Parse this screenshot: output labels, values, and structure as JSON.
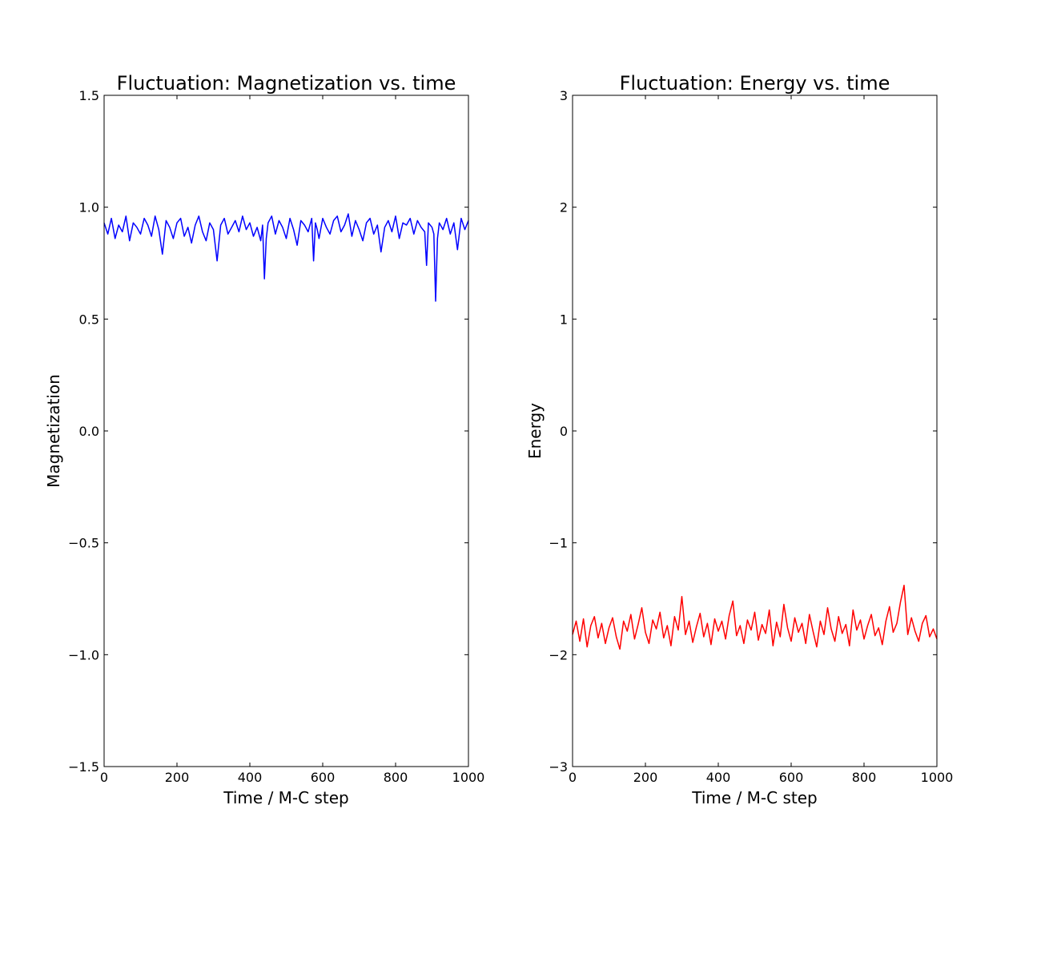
{
  "chart_data": [
    {
      "type": "line",
      "title": "Fluctuation: Magnetization vs. time",
      "xlabel": "Time / M-C step",
      "ylabel": "Magnetization",
      "xlim": [
        0,
        1000
      ],
      "ylim": [
        -1.5,
        1.5
      ],
      "x_ticks": [
        0,
        200,
        400,
        600,
        800,
        1000
      ],
      "x_tick_labels": [
        "0",
        "200",
        "400",
        "600",
        "800",
        "1000"
      ],
      "y_ticks": [
        -1.5,
        -1.0,
        -0.5,
        0.0,
        0.5,
        1.0,
        1.5
      ],
      "y_tick_labels": [
        "−1.5",
        "−1.0",
        "−0.5",
        "0.0",
        "0.5",
        "1.0",
        "1.5"
      ],
      "grid": false,
      "series": [
        {
          "color": "#0000ff",
          "x": [
            0,
            10,
            20,
            30,
            40,
            50,
            60,
            70,
            80,
            90,
            100,
            110,
            120,
            130,
            140,
            150,
            160,
            170,
            180,
            190,
            200,
            210,
            220,
            230,
            240,
            250,
            260,
            270,
            280,
            290,
            300,
            310,
            320,
            330,
            340,
            350,
            360,
            370,
            380,
            390,
            400,
            410,
            420,
            430,
            435,
            440,
            445,
            450,
            460,
            470,
            480,
            490,
            500,
            510,
            520,
            530,
            540,
            550,
            560,
            570,
            575,
            580,
            585,
            590,
            600,
            610,
            620,
            630,
            640,
            650,
            660,
            670,
            680,
            690,
            700,
            710,
            720,
            730,
            740,
            750,
            760,
            770,
            780,
            790,
            800,
            810,
            820,
            830,
            840,
            850,
            860,
            870,
            880,
            885,
            890,
            900,
            905,
            910,
            915,
            920,
            930,
            940,
            950,
            960,
            970,
            980,
            990,
            1000
          ],
          "y": [
            0.93,
            0.88,
            0.95,
            0.86,
            0.92,
            0.89,
            0.96,
            0.85,
            0.93,
            0.91,
            0.88,
            0.95,
            0.92,
            0.87,
            0.96,
            0.9,
            0.79,
            0.94,
            0.91,
            0.86,
            0.93,
            0.95,
            0.87,
            0.91,
            0.84,
            0.92,
            0.96,
            0.89,
            0.85,
            0.93,
            0.9,
            0.76,
            0.92,
            0.95,
            0.88,
            0.91,
            0.94,
            0.89,
            0.96,
            0.9,
            0.93,
            0.87,
            0.91,
            0.85,
            0.92,
            0.68,
            0.86,
            0.93,
            0.96,
            0.88,
            0.94,
            0.91,
            0.86,
            0.95,
            0.9,
            0.83,
            0.94,
            0.92,
            0.89,
            0.95,
            0.76,
            0.93,
            0.9,
            0.86,
            0.95,
            0.91,
            0.88,
            0.94,
            0.96,
            0.89,
            0.92,
            0.97,
            0.87,
            0.94,
            0.9,
            0.85,
            0.93,
            0.95,
            0.88,
            0.92,
            0.8,
            0.91,
            0.94,
            0.89,
            0.96,
            0.86,
            0.93,
            0.92,
            0.95,
            0.88,
            0.94,
            0.91,
            0.89,
            0.74,
            0.93,
            0.91,
            0.88,
            0.58,
            0.86,
            0.93,
            0.9,
            0.95,
            0.88,
            0.93,
            0.81,
            0.95,
            0.9,
            0.94
          ]
        }
      ]
    },
    {
      "type": "line",
      "title": "Fluctuation: Energy vs. time",
      "xlabel": "Time / M-C step",
      "ylabel": "Energy",
      "xlim": [
        0,
        1000
      ],
      "ylim": [
        -3,
        3
      ],
      "x_ticks": [
        0,
        200,
        400,
        600,
        800,
        1000
      ],
      "x_tick_labels": [
        "0",
        "200",
        "400",
        "600",
        "800",
        "1000"
      ],
      "y_ticks": [
        -3,
        -2,
        -1,
        0,
        1,
        2,
        3
      ],
      "y_tick_labels": [
        "−3",
        "−2",
        "−1",
        "0",
        "1",
        "2",
        "3"
      ],
      "grid": false,
      "series": [
        {
          "color": "#ff0000",
          "x": [
            0,
            10,
            20,
            30,
            40,
            50,
            60,
            70,
            80,
            90,
            100,
            110,
            120,
            130,
            140,
            150,
            160,
            170,
            180,
            190,
            200,
            210,
            220,
            230,
            240,
            250,
            260,
            270,
            280,
            290,
            300,
            310,
            320,
            330,
            340,
            350,
            360,
            370,
            380,
            390,
            400,
            410,
            420,
            430,
            440,
            450,
            460,
            470,
            480,
            490,
            500,
            510,
            520,
            530,
            540,
            550,
            560,
            570,
            580,
            590,
            600,
            610,
            620,
            630,
            640,
            650,
            660,
            670,
            680,
            690,
            700,
            710,
            720,
            730,
            740,
            750,
            760,
            770,
            780,
            790,
            800,
            810,
            820,
            830,
            840,
            850,
            860,
            870,
            880,
            890,
            900,
            910,
            920,
            930,
            940,
            950,
            960,
            970,
            980,
            990,
            1000
          ],
          "y": [
            -1.82,
            -1.7,
            -1.88,
            -1.68,
            -1.93,
            -1.74,
            -1.66,
            -1.85,
            -1.72,
            -1.9,
            -1.76,
            -1.67,
            -1.84,
            -1.95,
            -1.7,
            -1.79,
            -1.64,
            -1.86,
            -1.73,
            -1.58,
            -1.8,
            -1.9,
            -1.69,
            -1.77,
            -1.62,
            -1.85,
            -1.74,
            -1.92,
            -1.66,
            -1.78,
            -1.48,
            -1.82,
            -1.7,
            -1.89,
            -1.75,
            -1.63,
            -1.84,
            -1.72,
            -1.91,
            -1.68,
            -1.79,
            -1.7,
            -1.86,
            -1.65,
            -1.52,
            -1.83,
            -1.74,
            -1.9,
            -1.69,
            -1.78,
            -1.62,
            -1.87,
            -1.73,
            -1.81,
            -1.6,
            -1.92,
            -1.71,
            -1.84,
            -1.55,
            -1.76,
            -1.88,
            -1.67,
            -1.8,
            -1.72,
            -1.9,
            -1.64,
            -1.79,
            -1.93,
            -1.7,
            -1.82,
            -1.58,
            -1.77,
            -1.88,
            -1.66,
            -1.81,
            -1.73,
            -1.92,
            -1.6,
            -1.78,
            -1.69,
            -1.86,
            -1.74,
            -1.64,
            -1.83,
            -1.76,
            -1.91,
            -1.7,
            -1.57,
            -1.8,
            -1.72,
            -1.53,
            -1.38,
            -1.82,
            -1.67,
            -1.79,
            -1.88,
            -1.72,
            -1.65,
            -1.84,
            -1.77,
            -1.86
          ]
        }
      ]
    }
  ]
}
